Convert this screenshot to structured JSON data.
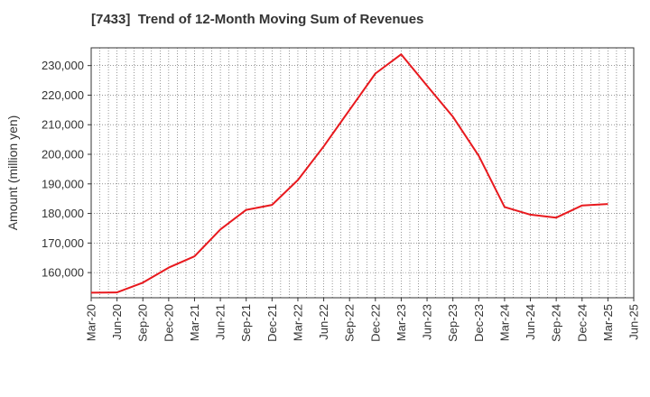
{
  "chart_data": {
    "type": "line",
    "title": "[7433]  Trend of 12-Month Moving Sum of Revenues",
    "xlabel": "",
    "ylabel": "Amount (million yen)",
    "ylim": [
      151500,
      236000
    ],
    "yticks": [
      160000,
      170000,
      180000,
      190000,
      200000,
      210000,
      220000,
      230000
    ],
    "ytick_labels": [
      "160,000",
      "170,000",
      "180,000",
      "190,000",
      "200,000",
      "210,000",
      "220,000",
      "230,000"
    ],
    "x_labels": [
      "Mar-20",
      "Jun-20",
      "Sep-20",
      "Dec-20",
      "Mar-21",
      "Jun-21",
      "Sep-21",
      "Dec-21",
      "Mar-22",
      "Jun-22",
      "Sep-22",
      "Dec-22",
      "Mar-23",
      "Jun-23",
      "Sep-23",
      "Dec-23",
      "Mar-24",
      "Jun-24",
      "Sep-24",
      "Dec-24",
      "Mar-25",
      "Jun-25"
    ],
    "grid": true,
    "line_color": "#e8191e",
    "series": [
      {
        "x": [
          "Mar-20",
          "Jun-20",
          "Sep-20",
          "Dec-20",
          "Mar-21",
          "Jun-21",
          "Sep-21",
          "Dec-21",
          "Mar-22",
          "Jun-22",
          "Sep-22",
          "Dec-22",
          "Mar-23",
          "Jun-23",
          "Sep-23",
          "Dec-23",
          "Mar-24",
          "Jun-24",
          "Sep-24",
          "Dec-24",
          "Mar-25"
        ],
        "values": [
          153200,
          153300,
          156600,
          161700,
          165500,
          174600,
          181200,
          182900,
          191300,
          202700,
          215000,
          227300,
          233800,
          223200,
          212700,
          199500,
          182200,
          179600,
          178600,
          182700,
          183200
        ]
      }
    ]
  }
}
